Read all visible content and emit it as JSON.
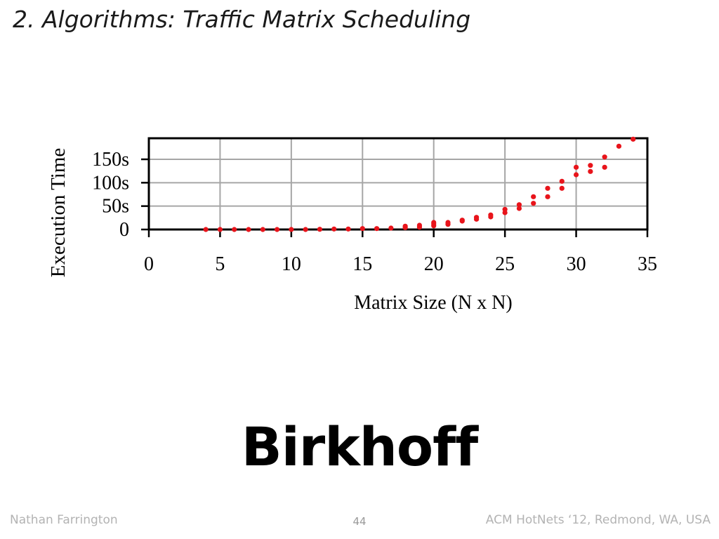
{
  "slide": {
    "title": "2. Algorithms: Traffic Matrix Scheduling",
    "headline": "Birkhoff",
    "footer_left": "Nathan Farrington",
    "page_number": "44",
    "footer_right": "ACM HotNets ‘12, Redmond, WA, USA"
  },
  "chart_data": {
    "type": "scatter",
    "xlabel": "Matrix Size (N x N)",
    "ylabel": "Execution Time",
    "xlim": [
      0,
      35
    ],
    "ylim": [
      0,
      195
    ],
    "x_ticks": [
      0,
      5,
      10,
      15,
      20,
      25,
      30,
      35
    ],
    "x_tick_labels": [
      "0",
      "5",
      "10",
      "15",
      "20",
      "25",
      "30",
      "35"
    ],
    "y_ticks": [
      0,
      50,
      100,
      150
    ],
    "y_tick_labels": [
      "0",
      "50s",
      "100s",
      "150s"
    ],
    "grid": true,
    "marker_color": "#e8141b",
    "series": [
      {
        "points": [
          [
            4,
            0
          ],
          [
            5,
            0
          ],
          [
            6,
            0
          ],
          [
            7,
            0
          ],
          [
            8,
            0
          ],
          [
            9,
            0
          ],
          [
            10,
            0
          ],
          [
            11,
            0
          ],
          [
            12,
            0.5
          ],
          [
            13,
            1
          ],
          [
            14,
            1
          ],
          [
            15,
            2
          ],
          [
            16,
            2
          ],
          [
            17,
            3
          ],
          [
            18,
            4
          ],
          [
            18,
            7
          ],
          [
            19,
            5
          ],
          [
            19,
            9
          ],
          [
            20,
            8
          ],
          [
            20,
            12
          ],
          [
            20,
            15
          ],
          [
            21,
            11
          ],
          [
            21,
            15
          ],
          [
            22,
            18
          ],
          [
            22,
            20
          ],
          [
            23,
            22
          ],
          [
            23,
            26
          ],
          [
            24,
            27
          ],
          [
            24,
            31
          ],
          [
            25,
            36
          ],
          [
            25,
            43
          ],
          [
            26,
            45
          ],
          [
            26,
            53
          ],
          [
            27,
            56
          ],
          [
            27,
            70
          ],
          [
            28,
            70
          ],
          [
            28,
            88
          ],
          [
            29,
            88
          ],
          [
            29,
            103
          ],
          [
            30,
            117
          ],
          [
            30,
            133
          ],
          [
            31,
            124
          ],
          [
            31,
            137
          ],
          [
            32,
            133
          ],
          [
            32,
            155
          ],
          [
            33,
            178
          ],
          [
            34,
            193
          ]
        ]
      }
    ]
  }
}
